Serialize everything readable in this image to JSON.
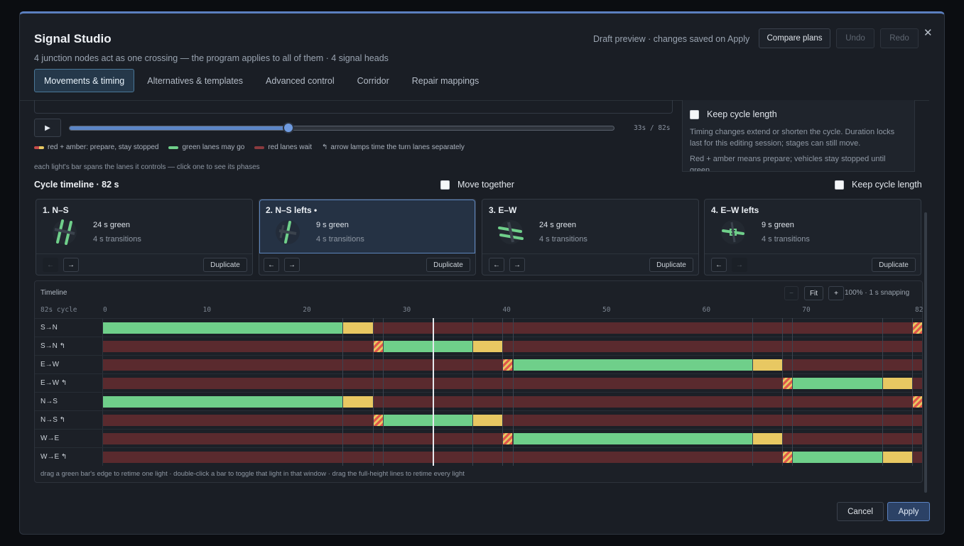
{
  "header": {
    "title": "Signal Studio",
    "subtitle": "4 junction nodes act as one crossing — the program applies to all of them · 4 signal heads",
    "draft_note": "Draft preview · changes saved on Apply",
    "compare_label": "Compare plans",
    "undo_label": "Undo",
    "redo_label": "Redo",
    "close_glyph": "✕"
  },
  "tabs": [
    {
      "label": "Movements & timing",
      "active": true
    },
    {
      "label": "Alternatives & templates"
    },
    {
      "label": "Advanced control"
    },
    {
      "label": "Corridor"
    },
    {
      "label": "Repair mappings"
    }
  ],
  "playback": {
    "play_glyph": "▶",
    "position_s": 33,
    "cycle_s": 82,
    "readout": "33s / 82s"
  },
  "legend": [
    {
      "label": "red + amber: prepare, stay stopped",
      "color": "#e8c862"
    },
    {
      "label": "green lanes may go",
      "color": "#6fcf8a"
    },
    {
      "label": "red lanes wait",
      "color": "#8a3a3e"
    },
    {
      "label": "arrow lamps time the turn lanes separately",
      "glyph": "↰"
    }
  ],
  "hint_top": "each light's bar spans the lanes it controls — click one to see its phases",
  "side_panel": {
    "keep_label": "Keep cycle length",
    "text1": "Timing changes extend or shorten the cycle. Duration locks last for this editing session; stages can still move.",
    "text2": "Red + amber means prepare; vehicles stay stopped until green."
  },
  "cycle": {
    "title": "Cycle timeline · 82 s",
    "move_together": "Move together",
    "keep_cycle": "Keep cycle length"
  },
  "stages": [
    {
      "title": "1. N–S",
      "green": "24 s green",
      "trans": "4 s transitions",
      "dup": "Duplicate",
      "prev": "←",
      "next": "→"
    },
    {
      "title": "2. N–S lefts •",
      "green": "9 s green",
      "trans": "4 s transitions",
      "dup": "Duplicate",
      "prev": "←",
      "next": "→"
    },
    {
      "title": "3. E–W",
      "green": "24 s green",
      "trans": "4 s transitions",
      "dup": "Duplicate",
      "prev": "←",
      "next": "→"
    },
    {
      "title": "4. E–W lefts",
      "green": "9 s green",
      "trans": "4 s transitions",
      "dup": "Duplicate",
      "prev": "←",
      "next": "→"
    }
  ],
  "timeline": {
    "title": "Timeline",
    "minus": "−",
    "fit": "Fit",
    "plus": "+",
    "snapping": "100% · 1 s snapping",
    "scale_label": "82s cycle",
    "ticks": [
      "0",
      "10",
      "20",
      "30",
      "40",
      "50",
      "60",
      "70",
      "82"
    ],
    "hint": "drag a green bar's edge to retime one light · double-click a bar to toggle that light in that window · drag the full-height lines to retime every light",
    "lanes": [
      {
        "label": "S→N",
        "green": [
          0,
          24
        ],
        "amber": [
          24,
          27
        ],
        "ra": [
          81,
          82
        ]
      },
      {
        "label": "S→N ↰",
        "ra": [
          27,
          28
        ],
        "green": [
          28,
          37
        ],
        "amber": [
          37,
          40
        ]
      },
      {
        "label": "E→W",
        "ra": [
          40,
          41
        ],
        "green": [
          41,
          65
        ],
        "amber": [
          65,
          68
        ]
      },
      {
        "label": "E→W ↰",
        "ra": [
          68,
          69
        ],
        "green": [
          69,
          78
        ],
        "amber": [
          78,
          81
        ]
      },
      {
        "label": "N→S",
        "green": [
          0,
          24
        ],
        "amber": [
          24,
          27
        ],
        "ra": [
          81,
          82
        ]
      },
      {
        "label": "N→S ↰",
        "ra": [
          27,
          28
        ],
        "green": [
          28,
          37
        ],
        "amber": [
          37,
          40
        ]
      },
      {
        "label": "W→E",
        "ra": [
          40,
          41
        ],
        "green": [
          41,
          65
        ],
        "amber": [
          65,
          68
        ]
      },
      {
        "label": "W→E ↰",
        "ra": [
          68,
          69
        ],
        "green": [
          69,
          78
        ],
        "amber": [
          78,
          81
        ]
      }
    ],
    "boundaries": [
      24,
      27,
      28,
      37,
      40,
      41,
      65,
      68,
      69,
      78,
      81
    ]
  },
  "footer": {
    "cancel": "Cancel",
    "apply": "Apply"
  },
  "colors": {
    "green": "#6fcf8a",
    "amber": "#e8c862",
    "red": "#5a2a2e",
    "accent": "#5c86c7"
  }
}
